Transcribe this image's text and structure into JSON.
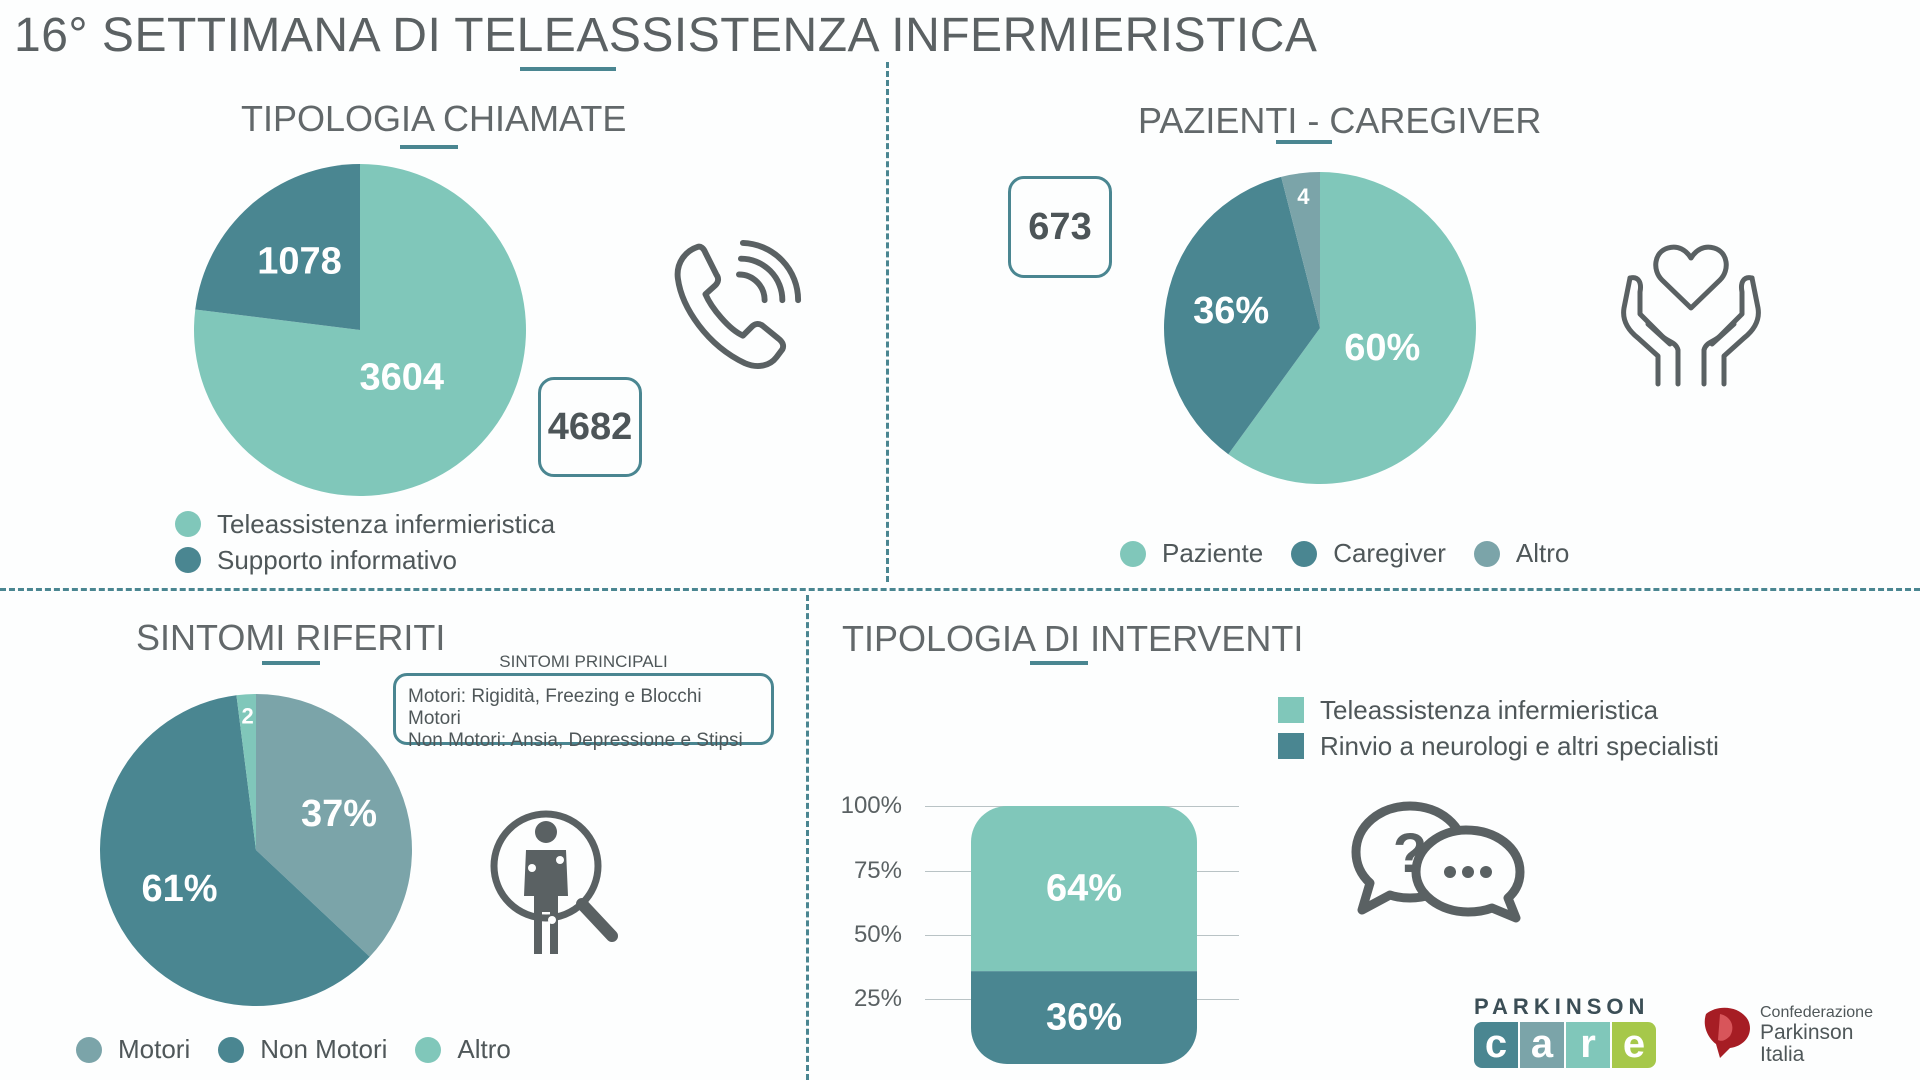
{
  "header": {
    "title": "16° SETTIMANA DI TELEASSISTENZA INFERMIERISTICA"
  },
  "colors": {
    "light_teal": "#80c7ba",
    "dark_teal": "#4a8691",
    "grey_teal": "#7ba4a9",
    "text": "#5f6668"
  },
  "tipologia_chiamate": {
    "title": "TIPOLOGIA CHIAMATE",
    "total": "4682",
    "icon": "phone-ringing-icon",
    "legend": [
      "Teleassistenza infermieristica",
      "Supporto informativo"
    ]
  },
  "pazienti_caregiver": {
    "title": "PAZIENTI - CAREGIVER",
    "callout": "673",
    "icon": "hands-heart-icon",
    "legend": [
      "Paziente",
      "Caregiver",
      "Altro"
    ]
  },
  "sintomi_riferiti": {
    "title": "SINTOMI RIFERITI",
    "box_title": "SINTOMI PRINCIPALI",
    "box_line1": "Motori: Rigidità, Freezing e Blocchi Motori",
    "box_line2": "Non Motori: Ansia, Depressione e Stipsi",
    "icon": "person-magnifier-icon",
    "legend": [
      "Motori",
      "Non Motori",
      "Altro"
    ]
  },
  "tipologia_interventi": {
    "title": "TIPOLOGIA DI INTERVENTI",
    "icon": "question-chat-icon",
    "legend": [
      "Teleassistenza infermieristica",
      "Rinvio a neurologi e altri specialisti"
    ],
    "yticks": [
      "100%",
      "75%",
      "50%",
      "25%"
    ]
  },
  "logos": {
    "parkinson": "PARKINSON",
    "care": [
      "c",
      "a",
      "r",
      "e"
    ],
    "cpi_line1": "Confederazione",
    "cpi_line2": "Parkinson",
    "cpi_line3": "Italia"
  },
  "chart_data": [
    {
      "type": "pie",
      "title": "TIPOLOGIA CHIAMATE",
      "categories": [
        "Teleassistenza infermieristica",
        "Supporto informativo"
      ],
      "values": [
        3604,
        1078
      ],
      "labels": [
        "3604",
        "1078"
      ],
      "colors": [
        "#80c7ba",
        "#4a8691"
      ]
    },
    {
      "type": "pie",
      "title": "PAZIENTI - CAREGIVER",
      "categories": [
        "Paziente",
        "Caregiver",
        "Altro"
      ],
      "values": [
        60,
        36,
        4
      ],
      "labels": [
        "60%",
        "36%",
        "4"
      ],
      "colors": [
        "#80c7ba",
        "#4a8691",
        "#7ba4a9"
      ]
    },
    {
      "type": "pie",
      "title": "SINTOMI RIFERITI",
      "categories": [
        "Motori",
        "Non Motori",
        "Altro"
      ],
      "values": [
        37,
        61,
        2
      ],
      "labels": [
        "37%",
        "61%",
        "2"
      ],
      "colors": [
        "#7ba4a9",
        "#4a8691",
        "#80c7ba"
      ]
    },
    {
      "type": "bar",
      "stacked": true,
      "title": "TIPOLOGIA DI INTERVENTI",
      "series": [
        {
          "name": "Rinvio a neurologi e altri specialisti",
          "values": [
            36
          ],
          "label": "36%",
          "color": "#4a8691"
        },
        {
          "name": "Teleassistenza infermieristica",
          "values": [
            64
          ],
          "label": "64%",
          "color": "#80c7ba"
        }
      ],
      "ylim": [
        0,
        100
      ],
      "yticks": [
        25,
        50,
        75,
        100
      ],
      "grid": true
    }
  ]
}
